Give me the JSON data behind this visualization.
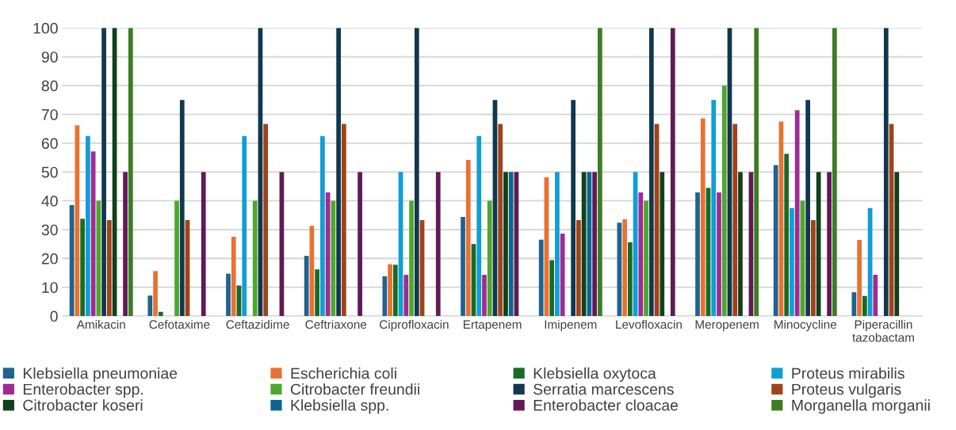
{
  "chart_data": {
    "type": "bar",
    "categories": [
      "Amikacin",
      "Cefotaxime",
      "Ceftazidime",
      "Ceftriaxone",
      "Ciprofloxacin",
      "Ertapenem",
      "Imipenem",
      "Levofloxacin",
      "Meropenem",
      "Minocycline",
      "Piperacillin\ntazobactam"
    ],
    "series": [
      {
        "name": "Klebsiella pneumoniae",
        "color": "#1f6391",
        "values": [
          38.5,
          7.1,
          14.7,
          20.9,
          13.8,
          34.4,
          26.5,
          32.4,
          42.9,
          52.4,
          8.3
        ]
      },
      {
        "name": "Escherichia coli",
        "color": "#e97132",
        "values": [
          66.2,
          15.6,
          27.5,
          31.3,
          18.0,
          54.2,
          48.2,
          33.6,
          68.6,
          67.5,
          26.4
        ]
      },
      {
        "name": "Klebsiella oxytoca",
        "color": "#196b24",
        "values": [
          33.8,
          1.5,
          10.6,
          16.2,
          17.8,
          25.0,
          19.4,
          25.6,
          44.5,
          56.3,
          7.0
        ]
      },
      {
        "name": "Proteus mirabilis",
        "color": "#0f9ed5",
        "values": [
          62.5,
          null,
          62.5,
          62.5,
          50,
          62.5,
          50,
          50,
          75,
          37.5,
          37.5
        ]
      },
      {
        "name": "Enterobacter spp.",
        "color": "#a02b93",
        "values": [
          57.1,
          null,
          null,
          42.9,
          14.3,
          14.3,
          28.6,
          42.9,
          42.9,
          71.4,
          14.3
        ]
      },
      {
        "name": "Citrobacter freundii",
        "color": "#4ea72e",
        "values": [
          40,
          40,
          40,
          40,
          40,
          40,
          null,
          40,
          80,
          40,
          null
        ]
      },
      {
        "name": "Serratia marcescens",
        "color": "#10384f",
        "values": [
          100,
          75,
          100,
          100,
          100,
          75,
          75,
          100,
          100,
          75,
          100
        ]
      },
      {
        "name": "Proteus vulgaris",
        "color": "#a0421a",
        "values": [
          33.3,
          33.3,
          66.7,
          66.7,
          33.3,
          66.7,
          33.3,
          66.7,
          66.7,
          33.3,
          66.7
        ]
      },
      {
        "name": "Citrobacter koseri",
        "color": "#12401a",
        "values": [
          100,
          null,
          null,
          null,
          null,
          50,
          50,
          50,
          50,
          50,
          50
        ]
      },
      {
        "name": "Klebsiella spp.",
        "color": "#0c6591",
        "values": [
          null,
          null,
          null,
          null,
          null,
          50,
          50,
          null,
          null,
          null,
          null
        ]
      },
      {
        "name": "Enterobacter cloacae",
        "color": "#5f1b55",
        "values": [
          50,
          50,
          50,
          50,
          50,
          50,
          50,
          100,
          50,
          50,
          null
        ]
      },
      {
        "name": "Morganella morganii",
        "color": "#3b7d23",
        "values": [
          100,
          null,
          null,
          null,
          null,
          null,
          100,
          null,
          100,
          100,
          null
        ]
      }
    ],
    "ylim": [
      0,
      100
    ],
    "yticks": [
      0,
      10,
      20,
      30,
      40,
      50,
      60,
      70,
      80,
      90,
      100
    ],
    "grid": "y",
    "legend": "bottom"
  }
}
